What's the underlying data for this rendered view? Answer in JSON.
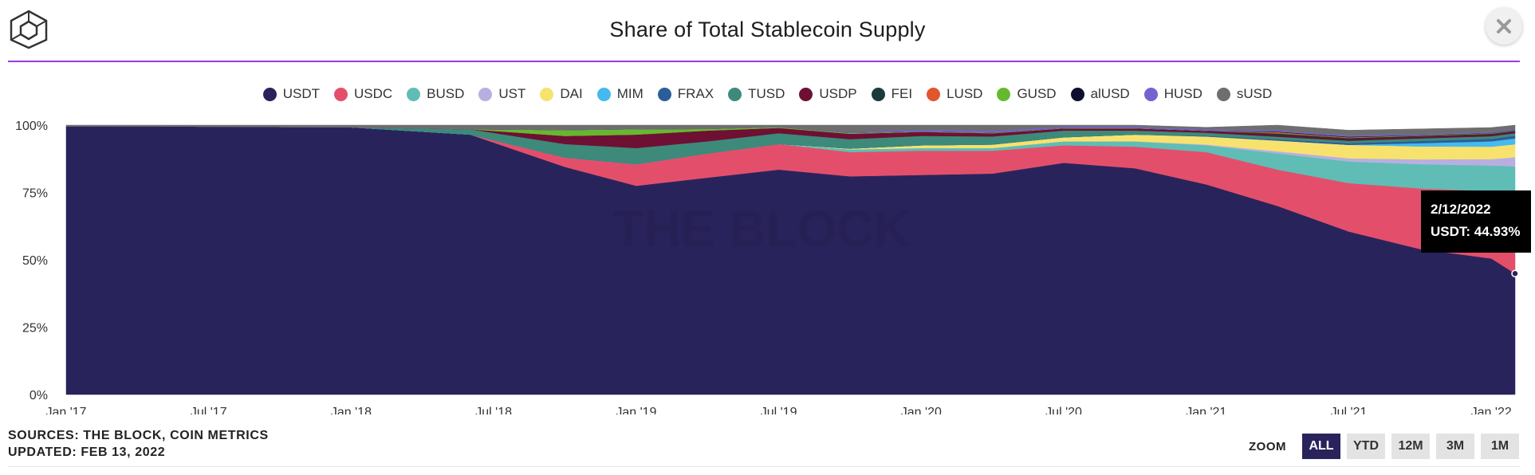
{
  "header": {
    "title": "Share of Total Stablecoin Supply",
    "logo_icon": "cube-logo-icon",
    "close_icon": "close-icon",
    "accent_rule_color": "#9b3bdc"
  },
  "legend": [
    {
      "name": "USDT",
      "color": "#29235c"
    },
    {
      "name": "USDC",
      "color": "#e34f6b"
    },
    {
      "name": "BUSD",
      "color": "#5fbdb5"
    },
    {
      "name": "UST",
      "color": "#b8afe0"
    },
    {
      "name": "DAI",
      "color": "#f7e26e"
    },
    {
      "name": "MIM",
      "color": "#46b9ee"
    },
    {
      "name": "FRAX",
      "color": "#2a5d99"
    },
    {
      "name": "TUSD",
      "color": "#3d8a7b"
    },
    {
      "name": "USDP",
      "color": "#6e1033"
    },
    {
      "name": "FEI",
      "color": "#1b3a3b"
    },
    {
      "name": "LUSD",
      "color": "#e2562c"
    },
    {
      "name": "GUSD",
      "color": "#66b92f"
    },
    {
      "name": "alUSD",
      "color": "#0e0e2e"
    },
    {
      "name": "HUSD",
      "color": "#7363d1"
    },
    {
      "name": "sUSD",
      "color": "#6e6e6e"
    }
  ],
  "chart_data": {
    "type": "area",
    "stacked": "percent",
    "title": "Share of Total Stablecoin Supply",
    "ylim": [
      0,
      100
    ],
    "y_ticks": [
      "0%",
      "25%",
      "50%",
      "75%",
      "100%"
    ],
    "x_ticks": [
      "Jan '17",
      "Jul '17",
      "Jan '18",
      "Jul '18",
      "Jan '19",
      "Jul '19",
      "Jan '20",
      "Jul '20",
      "Jan '21",
      "Jul '21",
      "Jan '22"
    ],
    "x": [
      "2017-01",
      "2017-06",
      "2018-01",
      "2018-06",
      "2018-10",
      "2019-01",
      "2019-04",
      "2019-07",
      "2019-10",
      "2020-01",
      "2020-04",
      "2020-07",
      "2020-10",
      "2021-01",
      "2021-04",
      "2021-07",
      "2021-10",
      "2022-01",
      "2022-02"
    ],
    "watermark": "THE BLOCK",
    "series": [
      {
        "name": "USDT",
        "values": [
          99.6,
          99.5,
          99.2,
          96.5,
          84.5,
          77.5,
          80.5,
          83.5,
          81.0,
          81.5,
          82.0,
          86.0,
          84.0,
          78.0,
          70.0,
          60.5,
          54.0,
          50.5,
          44.9
        ]
      },
      {
        "name": "USDC",
        "values": [
          0.0,
          0.0,
          0.0,
          0.0,
          3.5,
          8.0,
          9.0,
          9.5,
          9.0,
          9.0,
          8.5,
          6.5,
          8.0,
          12.0,
          13.5,
          18.0,
          22.5,
          25.0,
          30.0
        ]
      },
      {
        "name": "BUSD",
        "values": [
          0.0,
          0.0,
          0.0,
          0.0,
          0.0,
          0.0,
          0.0,
          0.0,
          1.0,
          1.0,
          1.0,
          1.5,
          2.0,
          2.5,
          6.0,
          8.0,
          9.0,
          9.5,
          9.8
        ]
      },
      {
        "name": "UST",
        "values": [
          0.0,
          0.0,
          0.0,
          0.0,
          0.0,
          0.0,
          0.0,
          0.0,
          0.0,
          0.0,
          0.0,
          0.0,
          0.0,
          0.3,
          0.8,
          1.2,
          1.8,
          2.4,
          3.4
        ]
      },
      {
        "name": "DAI",
        "values": [
          0.0,
          0.0,
          0.0,
          0.0,
          0.0,
          0.0,
          0.0,
          0.0,
          0.3,
          1.0,
          1.3,
          1.5,
          2.5,
          3.0,
          4.0,
          5.0,
          4.8,
          4.6,
          4.8
        ]
      },
      {
        "name": "MIM",
        "values": [
          0.0,
          0.0,
          0.0,
          0.0,
          0.0,
          0.0,
          0.0,
          0.0,
          0.0,
          0.0,
          0.0,
          0.0,
          0.0,
          0.0,
          0.0,
          0.0,
          1.2,
          2.0,
          2.2
        ]
      },
      {
        "name": "FRAX",
        "values": [
          0.0,
          0.0,
          0.0,
          0.0,
          0.0,
          0.0,
          0.0,
          0.0,
          0.0,
          0.0,
          0.0,
          0.0,
          0.0,
          0.2,
          0.4,
          0.6,
          0.8,
          0.9,
          1.0
        ]
      },
      {
        "name": "TUSD",
        "values": [
          0.0,
          0.0,
          0.0,
          2.0,
          5.0,
          6.0,
          4.5,
          4.0,
          3.5,
          3.5,
          3.0,
          2.5,
          1.5,
          1.2,
          1.0,
          0.9,
          1.0,
          1.0,
          0.9
        ]
      },
      {
        "name": "USDP",
        "values": [
          0.0,
          0.0,
          0.0,
          0.0,
          3.0,
          5.0,
          4.0,
          2.0,
          2.0,
          1.5,
          1.2,
          0.8,
          0.8,
          0.7,
          0.6,
          0.6,
          0.6,
          0.6,
          0.6
        ]
      },
      {
        "name": "FEI",
        "values": [
          0.0,
          0.0,
          0.0,
          0.0,
          0.0,
          0.0,
          0.0,
          0.0,
          0.0,
          0.0,
          0.0,
          0.0,
          0.0,
          0.0,
          0.6,
          0.4,
          0.3,
          0.3,
          0.3
        ]
      },
      {
        "name": "LUSD",
        "values": [
          0.0,
          0.0,
          0.0,
          0.0,
          0.0,
          0.0,
          0.0,
          0.0,
          0.0,
          0.0,
          0.0,
          0.0,
          0.0,
          0.0,
          0.4,
          0.2,
          0.1,
          0.1,
          0.1
        ]
      },
      {
        "name": "GUSD",
        "values": [
          0.0,
          0.0,
          0.0,
          0.0,
          2.2,
          2.0,
          0.6,
          0.3,
          0.3,
          0.2,
          0.2,
          0.1,
          0.1,
          0.1,
          0.1,
          0.1,
          0.1,
          0.1,
          0.1
        ]
      },
      {
        "name": "alUSD",
        "values": [
          0.0,
          0.0,
          0.0,
          0.0,
          0.0,
          0.0,
          0.0,
          0.0,
          0.0,
          0.0,
          0.0,
          0.0,
          0.0,
          0.0,
          0.2,
          0.2,
          0.1,
          0.1,
          0.1
        ]
      },
      {
        "name": "HUSD",
        "values": [
          0.0,
          0.0,
          0.0,
          0.0,
          0.0,
          0.0,
          0.0,
          0.0,
          0.3,
          0.6,
          0.7,
          0.5,
          0.5,
          0.5,
          0.5,
          0.5,
          0.4,
          0.4,
          0.4
        ]
      },
      {
        "name": "sUSD",
        "values": [
          0.4,
          0.5,
          0.8,
          1.5,
          1.8,
          1.5,
          1.4,
          0.7,
          2.6,
          1.7,
          2.1,
          0.6,
          0.6,
          0.7,
          1.9,
          1.9,
          1.9,
          1.6,
          1.4
        ]
      }
    ]
  },
  "tooltip": {
    "date": "2/12/2022",
    "text": "USDT: 44.93%"
  },
  "footer": {
    "sources": "SOURCES: THE BLOCK, COIN METRICS",
    "updated": "UPDATED: FEB 13, 2022"
  },
  "zoom": {
    "label": "ZOOM",
    "buttons": [
      {
        "label": "ALL",
        "active": true
      },
      {
        "label": "YTD",
        "active": false
      },
      {
        "label": "12M",
        "active": false
      },
      {
        "label": "3M",
        "active": false
      },
      {
        "label": "1M",
        "active": false
      }
    ]
  }
}
